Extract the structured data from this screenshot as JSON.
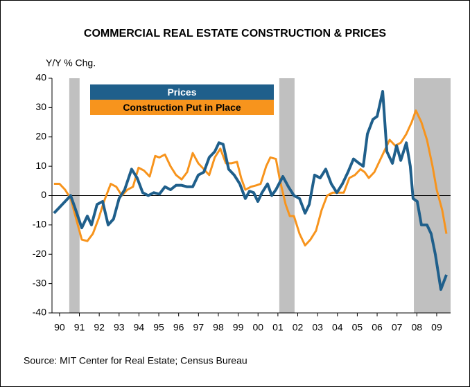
{
  "chart_data": {
    "type": "line",
    "title": "COMMERCIAL REAL ESTATE CONSTRUCTION & PRICES",
    "y_label": "Y/Y % Chg.",
    "source": "Source: MIT Center for Real Estate; Census Bureau",
    "legend": "upper left",
    "xlim": [
      1989.62,
      2009.7
    ],
    "ylim": [
      -40,
      40
    ],
    "yticks": [
      -40,
      -30,
      -20,
      -10,
      0,
      10,
      20,
      30,
      40
    ],
    "xticks": [
      {
        "value": 1990,
        "label": "90"
      },
      {
        "value": 1991,
        "label": "91"
      },
      {
        "value": 1992,
        "label": "92"
      },
      {
        "value": 1993,
        "label": "93"
      },
      {
        "value": 1994,
        "label": "94"
      },
      {
        "value": 1995,
        "label": "95"
      },
      {
        "value": 1996,
        "label": "96"
      },
      {
        "value": 1997,
        "label": "97"
      },
      {
        "value": 1998,
        "label": "98"
      },
      {
        "value": 1999,
        "label": "99"
      },
      {
        "value": 2000,
        "label": "00"
      },
      {
        "value": 2001,
        "label": "01"
      },
      {
        "value": 2002,
        "label": "02"
      },
      {
        "value": 2003,
        "label": "03"
      },
      {
        "value": 2004,
        "label": "04"
      },
      {
        "value": 2005,
        "label": "05"
      },
      {
        "value": 2006,
        "label": "06"
      },
      {
        "value": 2007,
        "label": "07"
      },
      {
        "value": 2008,
        "label": "08"
      },
      {
        "value": 2009,
        "label": "09"
      }
    ],
    "shaded": [
      [
        1990.49,
        1991.01
      ],
      [
        2001.07,
        2001.84
      ],
      [
        2007.85,
        2009.7
      ]
    ],
    "shade_color": "#c0c0c0",
    "series": [
      {
        "name": "Prices",
        "color": "#1f5f8b",
        "x": [
          1989.72,
          1990.0,
          1990.28,
          1990.56,
          1990.77,
          1991.12,
          1991.4,
          1991.61,
          1991.89,
          1992.17,
          1992.45,
          1992.72,
          1993.0,
          1993.28,
          1993.63,
          1993.91,
          1994.19,
          1994.47,
          1994.75,
          1995.03,
          1995.31,
          1995.59,
          1995.87,
          1996.15,
          1996.43,
          1996.71,
          1996.99,
          1997.27,
          1997.54,
          1997.82,
          1998.03,
          1998.24,
          1998.52,
          1998.8,
          1999.08,
          1999.36,
          1999.57,
          1999.78,
          1999.99,
          2000.2,
          2000.48,
          2000.69,
          2000.9,
          2001.25,
          2001.53,
          2001.81,
          2002.09,
          2002.37,
          2002.58,
          2002.85,
          2003.13,
          2003.41,
          2003.69,
          2003.97,
          2004.25,
          2004.53,
          2004.81,
          2005.09,
          2005.3,
          2005.51,
          2005.79,
          2006.0,
          2006.28,
          2006.49,
          2006.77,
          2006.98,
          2007.19,
          2007.47,
          2007.67,
          2007.81,
          2008.02,
          2008.23,
          2008.51,
          2008.72,
          2008.93,
          2009.21,
          2009.49
        ],
        "values": [
          -6,
          -4,
          -2,
          0,
          -4,
          -11,
          -7,
          -10,
          -3,
          -2,
          -10,
          -8,
          -1,
          2,
          9,
          6,
          1,
          0,
          1,
          0.5,
          3,
          2,
          3.5,
          3.5,
          3,
          3,
          7,
          8,
          13,
          15,
          18,
          17.5,
          9,
          7,
          4,
          -1,
          1.5,
          1,
          -2,
          1,
          4,
          0,
          2,
          6.5,
          3,
          0,
          -1,
          -6,
          -3,
          7,
          6,
          9,
          4,
          1,
          4,
          8,
          12.5,
          11,
          10,
          21,
          26,
          27,
          35.5,
          15,
          11,
          17,
          12,
          18,
          10,
          -1,
          -2,
          -10,
          -10,
          -13,
          -20,
          -32,
          -27
        ]
      },
      {
        "name": "Construction Put in Place",
        "color": "#f7941d",
        "x": [
          1989.72,
          1990.0,
          1990.28,
          1990.56,
          1990.84,
          1991.12,
          1991.4,
          1991.68,
          1991.96,
          1992.24,
          1992.58,
          1992.86,
          1993.14,
          1993.42,
          1993.7,
          1993.98,
          1994.26,
          1994.54,
          1994.82,
          1995.03,
          1995.31,
          1995.59,
          1995.87,
          1996.15,
          1996.43,
          1996.71,
          1996.99,
          1997.27,
          1997.54,
          1997.82,
          1998.1,
          1998.38,
          1998.66,
          1998.94,
          1999.15,
          1999.36,
          1999.64,
          1999.92,
          2000.13,
          2000.41,
          2000.62,
          2000.9,
          2001.11,
          2001.39,
          2001.6,
          2001.81,
          2002.09,
          2002.37,
          2002.64,
          2002.92,
          2003.2,
          2003.48,
          2003.76,
          2004.04,
          2004.32,
          2004.6,
          2004.88,
          2005.16,
          2005.37,
          2005.58,
          2005.86,
          2006.14,
          2006.42,
          2006.63,
          2006.91,
          2007.19,
          2007.47,
          2007.74,
          2007.95,
          2008.23,
          2008.51,
          2008.79,
          2009.0,
          2009.28,
          2009.49
        ],
        "values": [
          4,
          4,
          2,
          -1,
          -8,
          -15,
          -15.5,
          -13,
          -8,
          -2,
          4,
          3,
          0,
          2,
          3,
          9.5,
          8.5,
          6.5,
          13.5,
          13,
          14,
          10,
          7,
          5.5,
          8,
          14.5,
          11,
          9,
          7,
          13,
          16,
          11,
          11,
          11.5,
          6,
          2,
          3,
          3.5,
          4,
          10,
          13,
          12.5,
          5,
          -3,
          -7,
          -7,
          -13,
          -17,
          -15,
          -12,
          -5,
          0,
          1,
          1,
          1,
          6,
          7,
          9,
          8,
          6,
          8,
          12,
          16,
          19,
          17,
          18,
          21,
          25,
          29,
          25,
          19,
          10,
          2,
          -5,
          -13
        ]
      }
    ]
  }
}
